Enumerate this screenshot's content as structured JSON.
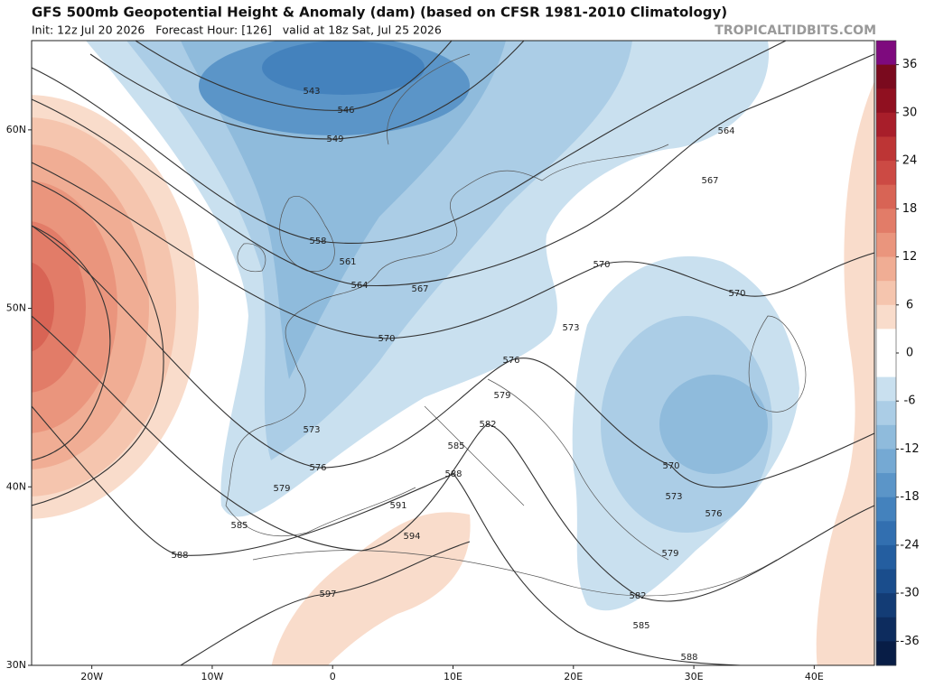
{
  "header": {
    "title": "GFS 500mb Geopotential Height & Anomaly (dam) (based on CFSR 1981-2010 Climatology)",
    "subtitle": "Init: 12z Jul 20 2026   Forecast Hour: [126]   valid at 18z Sat, Jul 25 2026",
    "site": "TROPICALTIDBITS.COM"
  },
  "map": {
    "lon_range": [
      -25,
      45
    ],
    "lat_range": [
      30,
      65
    ],
    "lat_ticks": [
      {
        "value": 60,
        "label": "60N"
      },
      {
        "value": 50,
        "label": "50N"
      },
      {
        "value": 40,
        "label": "40N"
      },
      {
        "value": 30,
        "label": "30N"
      }
    ],
    "lon_ticks": [
      {
        "value": -20,
        "label": "20W"
      },
      {
        "value": -10,
        "label": "10W"
      },
      0,
      {
        "value": 10,
        "label": "10E"
      },
      {
        "value": 20,
        "label": "20E"
      },
      {
        "value": 30,
        "label": "30E"
      },
      {
        "value": 40,
        "label": "40E"
      }
    ]
  },
  "contour_labels": [
    "543",
    "546",
    "549",
    "558",
    "561",
    "564",
    "567",
    "570",
    "573",
    "576",
    "579",
    "585",
    "588",
    "591",
    "594",
    "597",
    "582",
    "585",
    "588",
    "579",
    "576",
    "573",
    "570",
    "570",
    "567",
    "564",
    "570",
    "573",
    "576",
    "579",
    "582",
    "585",
    "588"
  ],
  "colorbar": {
    "range": [
      -39,
      39
    ],
    "colors": [
      "#7e0a7e",
      "#7a0a1e",
      "#901020",
      "#a81e2a",
      "#bd3535",
      "#cc4a44",
      "#d86455",
      "#e27c68",
      "#ea957d",
      "#f0ad94",
      "#f5c5ae",
      "#f9dccb",
      "#ffffff",
      "#ffffff",
      "#c9e0ef",
      "#abcde6",
      "#8fbbdc",
      "#75a9d3",
      "#5b95c8",
      "#4482bd",
      "#326fb0",
      "#245ea0",
      "#1a4d8c",
      "#133c75",
      "#0d2c5e",
      "#081d46"
    ],
    "ticks": [
      36,
      30,
      24,
      18,
      12,
      6,
      0,
      -6,
      -12,
      -18,
      -24,
      -30,
      -36
    ]
  }
}
